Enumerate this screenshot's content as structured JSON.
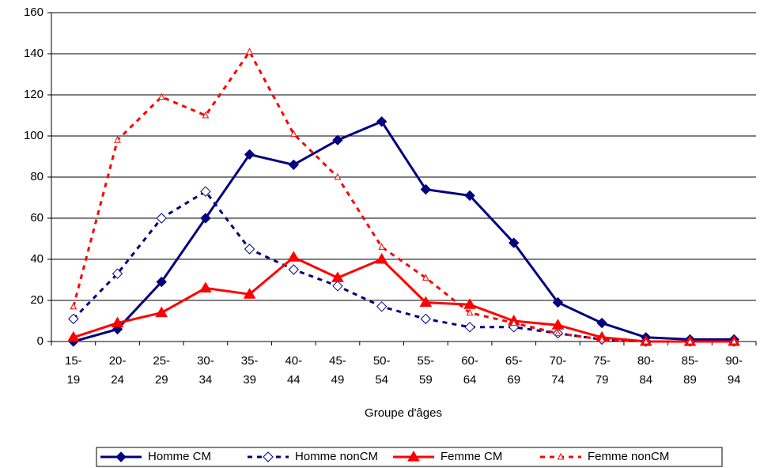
{
  "chart_data": {
    "type": "line",
    "x_label": "Groupe d'âges",
    "categories": [
      "15-19",
      "20-24",
      "25-29",
      "30-34",
      "35-39",
      "40-44",
      "45-49",
      "50-54",
      "55-59",
      "60-64",
      "65-69",
      "70-74",
      "75-79",
      "80-84",
      "85-89",
      "90-94"
    ],
    "series": [
      {
        "name": "Homme CM",
        "color": "#000080",
        "dashed": false,
        "marker": "diamond",
        "marker_filled": true,
        "values": [
          0,
          6,
          29,
          60,
          91,
          86,
          98,
          107,
          74,
          71,
          48,
          19,
          9,
          2,
          1,
          1
        ]
      },
      {
        "name": "Homme nonCM",
        "color": "#000080",
        "dashed": true,
        "marker": "diamond",
        "marker_filled": false,
        "values": [
          11,
          33,
          60,
          73,
          45,
          35,
          27,
          17,
          11,
          7,
          7,
          4,
          1,
          0,
          0,
          0
        ]
      },
      {
        "name": "Femme CM",
        "color": "#ff0000",
        "dashed": false,
        "marker": "triangle",
        "marker_filled": true,
        "values": [
          2,
          9,
          14,
          26,
          23,
          41,
          31,
          40,
          19,
          18,
          10,
          8,
          2,
          0,
          0,
          0
        ]
      },
      {
        "name": "Femme nonCM",
        "color": "#ff0000",
        "dashed": true,
        "marker": "small-triangle",
        "marker_filled": false,
        "values": [
          17,
          98,
          119,
          110,
          141,
          101,
          80,
          46,
          31,
          14,
          9,
          4,
          1,
          0,
          0,
          0
        ]
      }
    ],
    "ylim": [
      0,
      160
    ],
    "yticks": [
      0,
      20,
      40,
      60,
      80,
      100,
      120,
      140,
      160
    ],
    "grid": true,
    "legend": "bottom"
  }
}
